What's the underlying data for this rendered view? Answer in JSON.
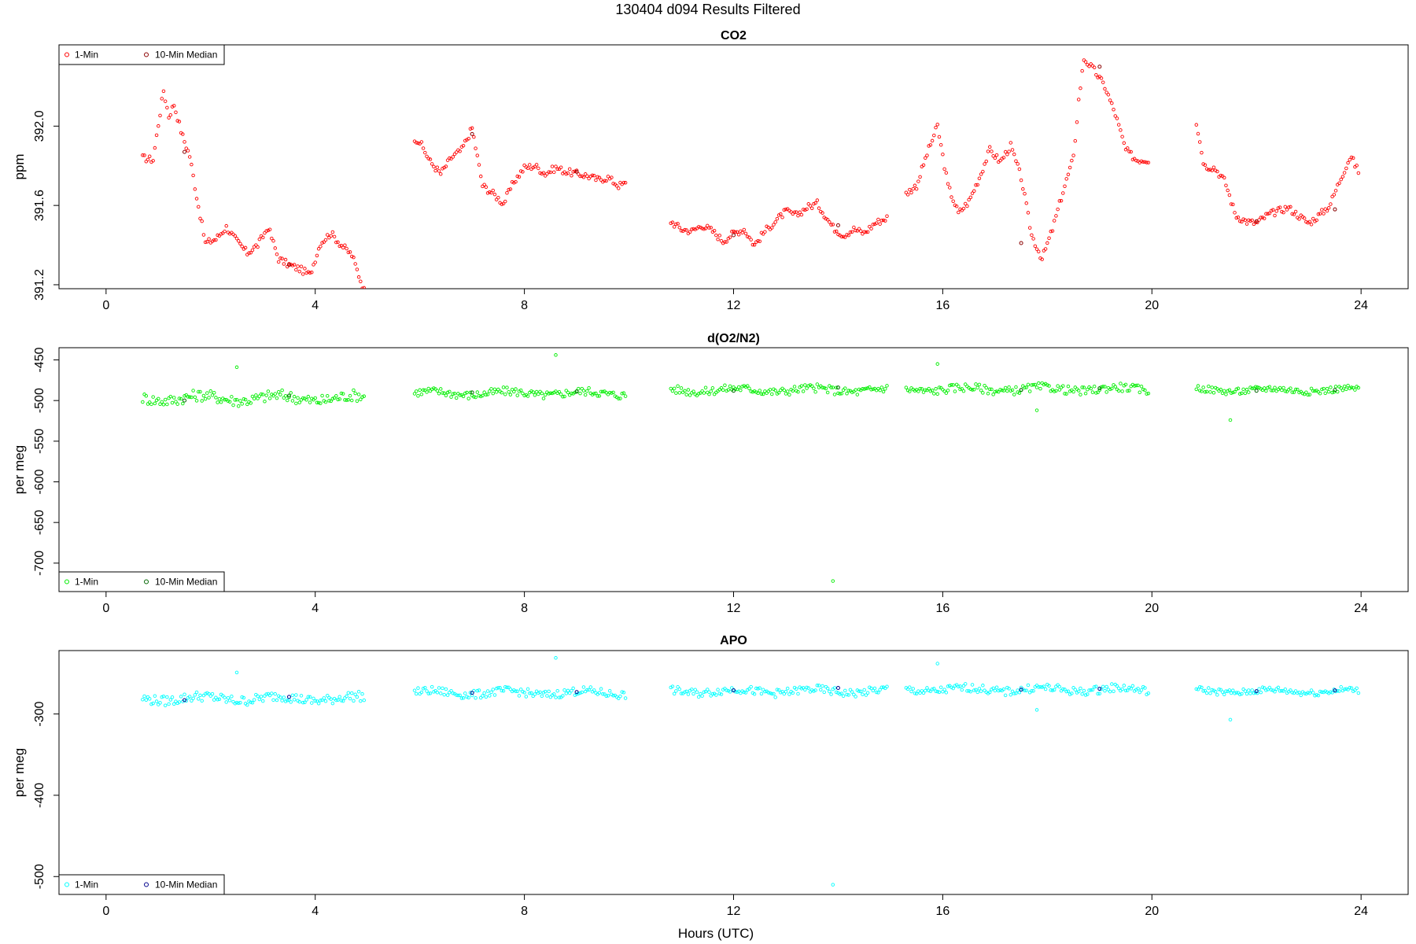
{
  "figure": {
    "title": "130404   d094   Results Filtered",
    "xlabel": "Hours (UTC)"
  },
  "chart_data": [
    {
      "type": "scatter",
      "title": "CO2",
      "ylabel": "ppm",
      "xlim": [
        -0.9,
        24.9
      ],
      "ylim": [
        391.18,
        392.41
      ],
      "xticks": [
        0,
        4,
        8,
        12,
        16,
        20,
        24
      ],
      "yticks": [
        391.2,
        391.6,
        392.0
      ],
      "ytick_labels": [
        "391.2",
        "391.6",
        "392.0"
      ],
      "legend": {
        "position": "top-left",
        "entries": [
          "1-Min",
          "10-Min Median"
        ]
      },
      "colors": {
        "one_min": "#ff0000",
        "median": "#8b0000"
      },
      "series": [
        {
          "name": "1-Min",
          "segments": [
            {
              "x": [
                0.7,
                0.9,
                1.0,
                1.1,
                1.2,
                1.3,
                1.45,
                1.6,
                1.75,
                1.9,
                2.1,
                2.3,
                2.5,
                2.7,
                2.9,
                3.1,
                3.3,
                3.5,
                3.7,
                3.9,
                4.1,
                4.3,
                4.5,
                4.7,
                4.95
              ],
              "y": [
                391.84,
                391.83,
                392.01,
                392.18,
                392.05,
                392.11,
                391.96,
                391.85,
                391.62,
                391.41,
                391.43,
                391.49,
                391.42,
                391.36,
                391.4,
                391.49,
                391.33,
                391.3,
                391.28,
                391.25,
                391.41,
                391.46,
                391.4,
                391.35,
                391.16
              ]
            },
            {
              "x": [
                5.9,
                6.0,
                6.2,
                6.4,
                6.6,
                6.8,
                7.0,
                7.2,
                7.4,
                7.6,
                7.8,
                8.0,
                8.2,
                8.4,
                8.6,
                8.8,
                9.0,
                9.2,
                9.4,
                9.6,
                9.8,
                9.95
              ],
              "y": [
                391.94,
                391.92,
                391.82,
                391.76,
                391.84,
                391.88,
                391.99,
                391.7,
                391.66,
                391.61,
                391.72,
                391.79,
                391.8,
                391.76,
                391.79,
                391.77,
                391.76,
                391.75,
                391.73,
                391.74,
                391.7,
                391.71
              ]
            },
            {
              "x": [
                10.8,
                11.0,
                11.2,
                11.4,
                11.6,
                11.8,
                12.0,
                12.2,
                12.4,
                12.6,
                12.8,
                13.0,
                13.2,
                13.4,
                13.6,
                13.9,
                14.1,
                14.3,
                14.5,
                14.7,
                14.95
              ],
              "y": [
                391.52,
                391.48,
                391.47,
                391.5,
                391.47,
                391.42,
                391.46,
                391.48,
                391.4,
                391.47,
                391.52,
                391.57,
                391.55,
                391.59,
                391.61,
                391.49,
                391.45,
                391.48,
                391.46,
                391.51,
                391.54
              ]
            },
            {
              "x": [
                15.3,
                15.5,
                15.7,
                15.9,
                16.1,
                16.3,
                16.5,
                16.7,
                16.9,
                17.1,
                17.3,
                17.5,
                17.7,
                17.9,
                18.1,
                18.3,
                18.5,
                18.6,
                18.7,
                18.9,
                19.1,
                19.3,
                19.5,
                19.7,
                19.95
              ],
              "y": [
                391.66,
                391.7,
                391.86,
                392.0,
                391.7,
                391.56,
                391.62,
                391.74,
                391.88,
                391.82,
                391.9,
                391.74,
                391.45,
                391.33,
                391.48,
                391.67,
                391.84,
                392.13,
                392.34,
                392.28,
                392.2,
                392.06,
                391.88,
                391.83,
                391.83
              ]
            },
            {
              "x": [
                20.85,
                21.0,
                21.2,
                21.4,
                21.6,
                21.8,
                22.0,
                22.2,
                22.4,
                22.6,
                22.8,
                23.0,
                23.2,
                23.4,
                23.6,
                23.8,
                23.95
              ],
              "y": [
                392.02,
                391.8,
                391.79,
                391.72,
                391.55,
                391.52,
                391.51,
                391.55,
                391.57,
                391.59,
                391.55,
                391.51,
                391.55,
                391.6,
                391.73,
                391.85,
                391.77
              ]
            }
          ]
        },
        {
          "name": "10-Min Median",
          "x": [
            1.5,
            3.5,
            7.0,
            9.0,
            12.0,
            14.0,
            17.5,
            19.0,
            22.0,
            23.5
          ],
          "y": [
            391.87,
            391.3,
            391.96,
            391.77,
            391.45,
            391.5,
            391.41,
            392.3,
            391.52,
            391.58
          ]
        }
      ]
    },
    {
      "type": "scatter",
      "title": "d(O2/N2)",
      "ylabel": "per meg",
      "xlim": [
        -0.9,
        24.9
      ],
      "ylim": [
        -735,
        -435
      ],
      "xticks": [
        0,
        4,
        8,
        12,
        16,
        20,
        24
      ],
      "yticks": [
        -700,
        -650,
        -600,
        -550,
        -500,
        -450
      ],
      "ytick_labels": [
        "-700",
        "-650",
        "-600",
        "-550",
        "-500",
        "-450"
      ],
      "legend": {
        "position": "bottom-left",
        "entries": [
          "1-Min",
          "10-Min Median"
        ]
      },
      "colors": {
        "one_min": "#00ee00",
        "median": "#006400"
      },
      "series": [
        {
          "name": "1-Min",
          "segments": [
            {
              "x": [
                0.7,
                4.95
              ],
              "base": -497,
              "amp": 7
            },
            {
              "x": [
                5.9,
                9.95
              ],
              "base": -491,
              "amp": 5
            },
            {
              "x": [
                10.8,
                14.95
              ],
              "base": -487,
              "amp": 5
            },
            {
              "x": [
                15.3,
                19.95
              ],
              "base": -486,
              "amp": 5
            },
            {
              "x": [
                20.85,
                23.95
              ],
              "base": -487,
              "amp": 4
            }
          ],
          "outliers": {
            "x": [
              2.5,
              8.6,
              13.9,
              15.9,
              17.8,
              21.5
            ],
            "y": [
              -459,
              -444,
              -722,
              -455,
              -512,
              -524
            ]
          }
        },
        {
          "name": "10-Min Median",
          "x": [
            1.5,
            3.5,
            7.0,
            9.0,
            12.0,
            14.0,
            17.5,
            19.0,
            22.0,
            23.5
          ],
          "y": [
            -500,
            -494,
            -490,
            -489,
            -488,
            -484,
            -487,
            -485,
            -488,
            -487
          ]
        }
      ]
    },
    {
      "type": "scatter",
      "title": "APO",
      "ylabel": "per meg",
      "xlim": [
        -0.9,
        24.9
      ],
      "ylim": [
        -522,
        -222
      ],
      "xticks": [
        0,
        4,
        8,
        12,
        16,
        20,
        24
      ],
      "yticks": [
        -500,
        -400,
        -300
      ],
      "ytick_labels": [
        "-500",
        "-400",
        "-300"
      ],
      "legend": {
        "position": "bottom-left",
        "entries": [
          "1-Min",
          "10-Min Median"
        ]
      },
      "colors": {
        "one_min": "#00ffff",
        "median": "#00008b"
      },
      "series": [
        {
          "name": "1-Min",
          "segments": [
            {
              "x": [
                0.7,
                4.95
              ],
              "base": -281,
              "amp": 6
            },
            {
              "x": [
                5.9,
                9.95
              ],
              "base": -274,
              "amp": 5
            },
            {
              "x": [
                10.8,
                14.95
              ],
              "base": -272,
              "amp": 5
            },
            {
              "x": [
                15.3,
                19.95
              ],
              "base": -270,
              "amp": 5
            },
            {
              "x": [
                20.85,
                23.95
              ],
              "base": -272,
              "amp": 4
            }
          ],
          "outliers": {
            "x": [
              2.5,
              8.6,
              13.9,
              15.9,
              17.8,
              21.5
            ],
            "y": [
              -249,
              -231,
              -510,
              -238,
              -295,
              -307
            ]
          }
        },
        {
          "name": "10-Min Median",
          "x": [
            1.5,
            3.5,
            7.0,
            9.0,
            12.0,
            14.0,
            17.5,
            19.0,
            22.0,
            23.5
          ],
          "y": [
            -283,
            -279,
            -274,
            -273,
            -271,
            -268,
            -270,
            -269,
            -272,
            -271
          ]
        }
      ]
    }
  ]
}
